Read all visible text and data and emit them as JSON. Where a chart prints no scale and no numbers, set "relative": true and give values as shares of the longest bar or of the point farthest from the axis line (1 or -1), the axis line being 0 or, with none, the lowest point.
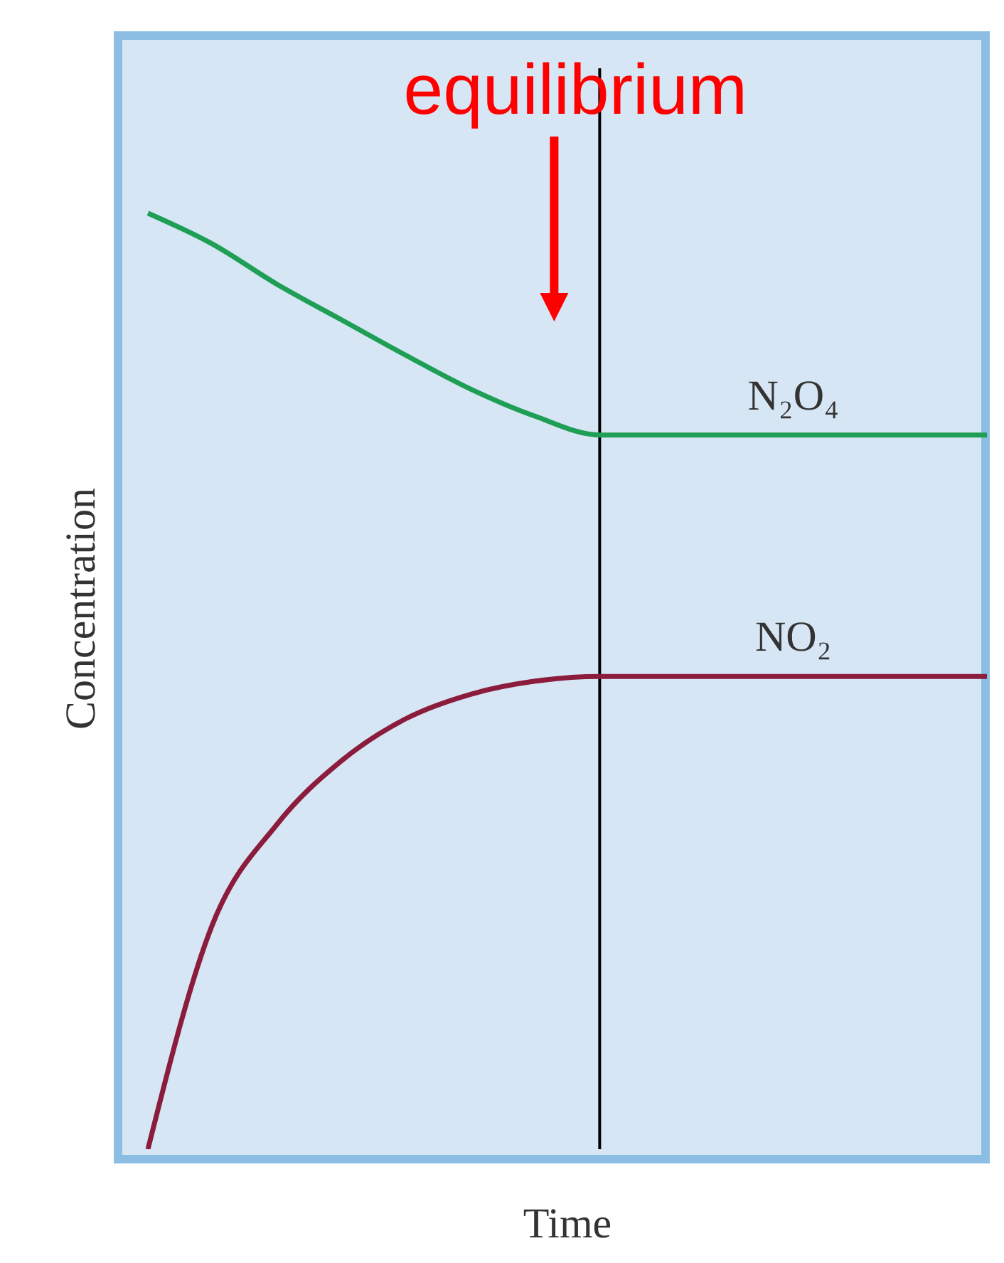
{
  "chart_data": {
    "type": "line",
    "relative": true,
    "xlabel": "Time",
    "ylabel": "Concentration",
    "annotations": [
      "equilibrium"
    ],
    "grid": false,
    "legend": false,
    "marker": "none",
    "line_style": "solid",
    "categories": [
      null,
      null,
      null,
      null,
      null,
      null,
      null,
      null,
      null,
      null,
      null,
      null,
      null,
      null
    ],
    "series": [
      {
        "name": "N₂O₄",
        "color": "#1f9e55",
        "values": [
          1,
          0.967,
          0.924,
          0.886,
          0.848,
          0.812,
          0.783,
          0.763,
          0.763,
          0.763,
          0.763,
          0.763,
          0.763,
          0.763
        ]
      },
      {
        "name": "NO₂",
        "color": "#8c1c3c",
        "values": [
          0,
          0.24,
          0.347,
          0.415,
          0.46,
          0.486,
          0.5,
          0.505,
          0.505,
          0.505,
          0.505,
          0.505,
          0.505,
          0.505
        ]
      }
    ]
  }
}
